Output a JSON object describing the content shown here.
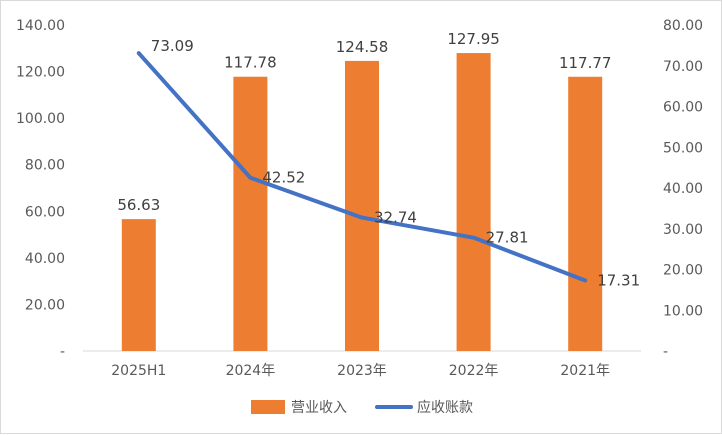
{
  "chart_data": {
    "type": "bar+line",
    "categories": [
      "2025H1",
      "2024年",
      "2023年",
      "2022年",
      "2021年"
    ],
    "series": [
      {
        "name": "营业收入",
        "type": "bar",
        "axis": "left",
        "color": "#ED7D31",
        "values": [
          56.63,
          117.78,
          124.58,
          127.95,
          117.77
        ],
        "labels": [
          "56.63",
          "117.78",
          "124.58",
          "127.95",
          "117.77"
        ]
      },
      {
        "name": "应收账款",
        "type": "line",
        "axis": "right",
        "color": "#4472C4",
        "values": [
          73.09,
          42.52,
          32.74,
          27.81,
          17.31
        ],
        "labels": [
          "73.09",
          "42.52",
          "32.74",
          "27.81",
          "17.31"
        ]
      }
    ],
    "y_left": {
      "range": [
        0,
        140
      ],
      "ticks": [
        "-",
        "20.00",
        "40.00",
        "60.00",
        "80.00",
        "100.00",
        "120.00",
        "140.00"
      ]
    },
    "y_right": {
      "range": [
        0,
        80
      ],
      "ticks": [
        "-",
        "10.00",
        "20.00",
        "30.00",
        "40.00",
        "50.00",
        "60.00",
        "70.00",
        "80.00"
      ]
    },
    "grid": false,
    "legend_position": "bottom",
    "title": "",
    "xlabel": "",
    "ylabel": ""
  }
}
